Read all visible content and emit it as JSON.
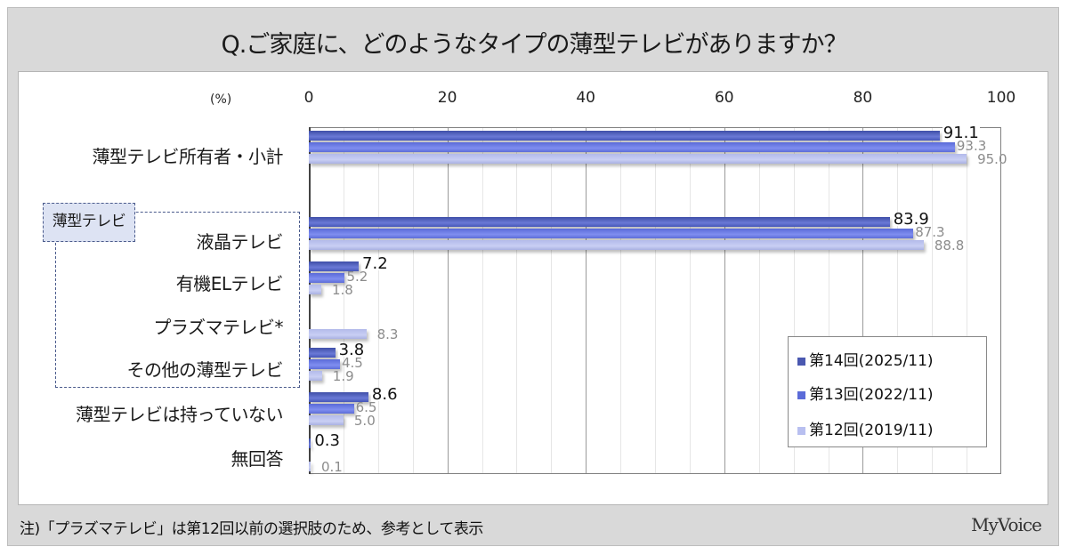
{
  "title": "Q.ご家庭に、どのようなタイプの薄型テレビがありますか？",
  "unit_label": "(%)",
  "axis_ticks": [
    "0",
    "20",
    "40",
    "60",
    "80",
    "100"
  ],
  "group_tag": "薄型テレビ",
  "footnote": "注)「プラズマテレビ」は第12回以前の選択肢のため、参考として表示",
  "brand": "MyVoice",
  "legend": [
    {
      "label": "第14回(2025/11)",
      "color": "#4a58b0"
    },
    {
      "label": "第13回(2022/11)",
      "color": "#5b6bd8"
    },
    {
      "label": "第12回(2019/11)",
      "color": "#b8bff0"
    }
  ],
  "categories": [
    "薄型テレビ所有者・小計",
    "液晶テレビ",
    "有機ELテレビ",
    "プラズマテレビ*",
    "その他の薄型テレビ",
    "薄型テレビは持っていない",
    "無回答"
  ],
  "value_labels": {
    "s14": [
      "91.1",
      "83.9",
      "7.2",
      "",
      "3.8",
      "8.6",
      "0.3"
    ],
    "s13": [
      "93.3",
      "87.3",
      "5.2",
      "",
      "4.5",
      "6.5",
      ""
    ],
    "s12": [
      "95.0",
      "88.8",
      "1.8",
      "8.3",
      "1.9",
      "5.0",
      "0.1"
    ]
  },
  "chart_data": {
    "type": "bar",
    "orientation": "horizontal",
    "title": "Q.ご家庭に、どのようなタイプの薄型テレビがありますか？",
    "xlabel": "(%)",
    "ylabel": "",
    "xlim": [
      0,
      100
    ],
    "x_ticks": [
      0,
      20,
      40,
      60,
      80,
      100
    ],
    "grid": true,
    "legend_position": "lower right inside",
    "categories": [
      "薄型テレビ所有者・小計",
      "液晶テレビ",
      "有機ELテレビ",
      "プラズマテレビ*",
      "その他の薄型テレビ",
      "薄型テレビは持っていない",
      "無回答"
    ],
    "series": [
      {
        "name": "第14回(2025/11)",
        "values": [
          91.1,
          83.9,
          7.2,
          null,
          3.8,
          8.6,
          0.3
        ]
      },
      {
        "name": "第13回(2022/11)",
        "values": [
          93.3,
          87.3,
          5.2,
          null,
          4.5,
          6.5,
          null
        ]
      },
      {
        "name": "第12回(2019/11)",
        "values": [
          95.0,
          88.8,
          1.8,
          8.3,
          1.9,
          5.0,
          0.1
        ]
      }
    ],
    "annotations": [
      "薄型テレビ (group bracket over 液晶テレビ〜その他の薄型テレビ)",
      "注)「プラズマテレビ」は第12回以前の選択肢のため、参考として表示"
    ]
  }
}
